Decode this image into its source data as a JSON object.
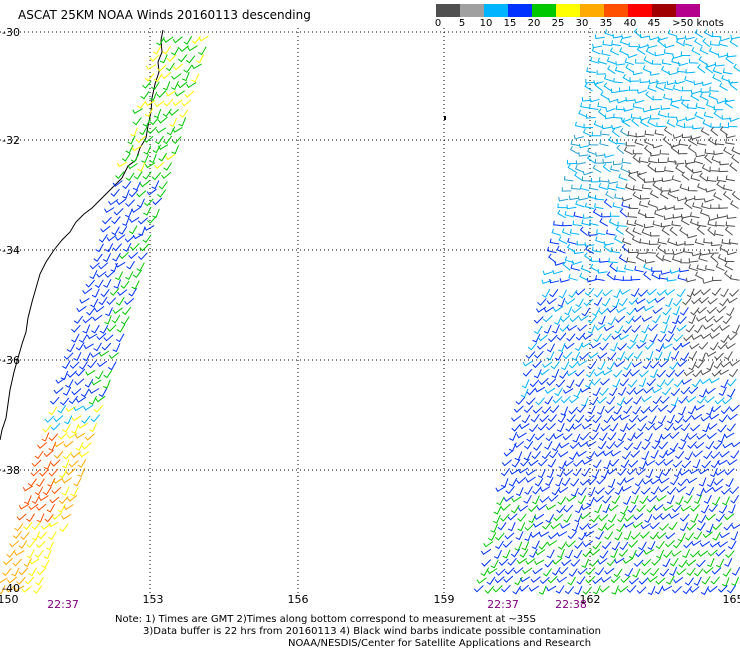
{
  "title": "ASCAT 25KM NOAA Winds 20160113 descending",
  "legend": {
    "colors": [
      "#505050",
      "#a0a0a0",
      "#00b4ff",
      "#0032ff",
      "#00c800",
      "#ffff00",
      "#ffaa00",
      "#ff5000",
      "#ff0000",
      "#a00000",
      "#b4008c",
      "#ff00ff",
      "#8c00ff",
      "#000000"
    ],
    "labels": [
      "0",
      "5",
      "10",
      "15",
      "20",
      "25",
      "30",
      "35",
      "40",
      "45",
      ">50 knots"
    ]
  },
  "map": {
    "lat_labels": [
      "-30",
      "-32",
      "-34",
      "-36",
      "-38",
      "-40"
    ],
    "lon_labels": [
      "150",
      "153",
      "156",
      "159",
      "162",
      "165"
    ],
    "time_labels": [
      "22:37",
      "22:37",
      "22:38"
    ],
    "coast_color": "#000000",
    "grid_style": "dotted"
  },
  "notes": {
    "line1": "Note: 1) Times are GMT 2)Times along bottom correspond to measurement at ~35S",
    "line2": "3)Data buffer is 22 hrs from 20160113 4) Black wind barbs indicate possible contamination",
    "line3": "NOAA/NESDIS/Center for Satellite Applications and Research"
  }
}
